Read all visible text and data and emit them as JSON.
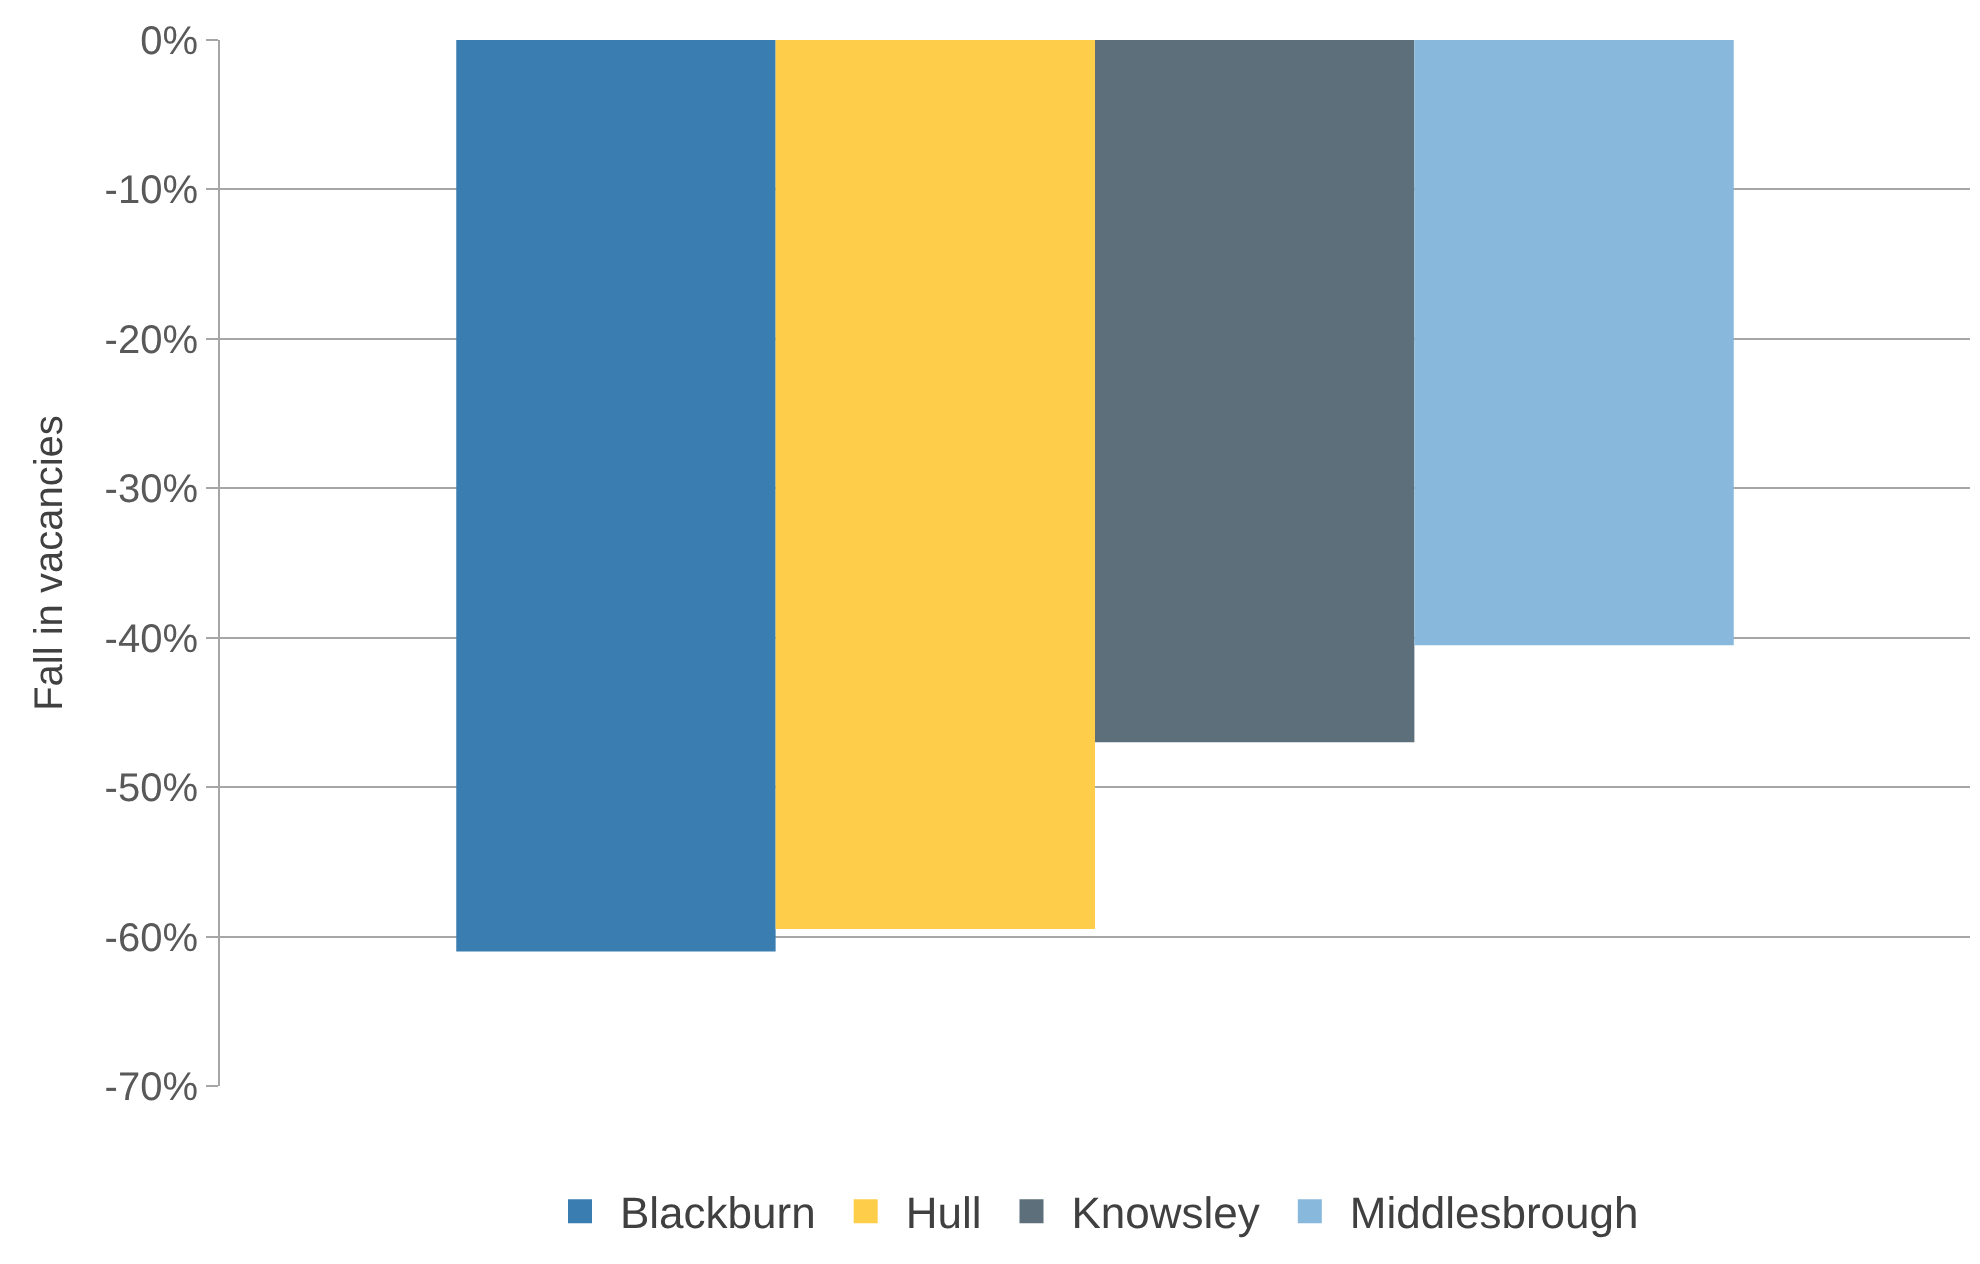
{
  "chart_data": {
    "type": "bar",
    "ylabel": "Fall in vacancies",
    "categories": [
      null
    ],
    "series": [
      {
        "name": "Blackburn",
        "color": "#3a7eb1",
        "values": [
          -61
        ]
      },
      {
        "name": "Hull",
        "color": "#fecd4a",
        "values": [
          -59.5
        ]
      },
      {
        "name": "Knowsley",
        "color": "#5c6f7a",
        "values": [
          -47
        ]
      },
      {
        "name": "Middlesbrough",
        "color": "#88b9dd",
        "values": [
          -40.5
        ]
      }
    ],
    "ylim": [
      -70,
      0
    ],
    "yticks": [
      {
        "value": 0,
        "label": "0%"
      },
      {
        "value": -10,
        "label": "-10%"
      },
      {
        "value": -20,
        "label": "-20%"
      },
      {
        "value": -30,
        "label": "-30%"
      },
      {
        "value": -40,
        "label": "-40%"
      },
      {
        "value": -50,
        "label": "-50%"
      },
      {
        "value": -60,
        "label": "-60%"
      },
      {
        "value": -70,
        "label": "-70%"
      }
    ],
    "grid": "y",
    "legend": "bottom"
  }
}
